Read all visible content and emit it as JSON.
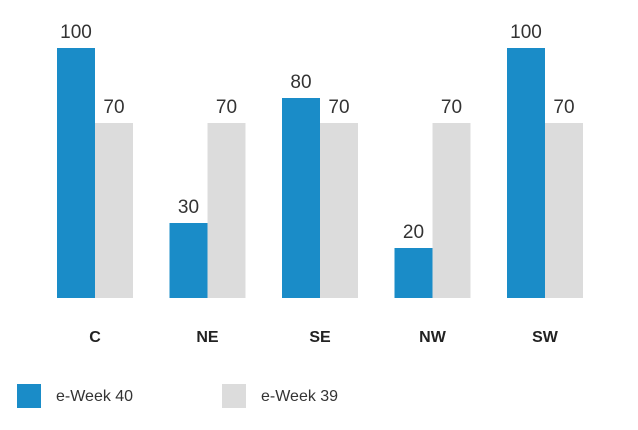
{
  "chart_data": {
    "type": "bar",
    "categories": [
      "C",
      "NE",
      "SE",
      "NW",
      "SW"
    ],
    "series": [
      {
        "name": "e-Week 40",
        "values": [
          100,
          30,
          80,
          20,
          100
        ],
        "color": "#1a8cc8"
      },
      {
        "name": "e-Week 39",
        "values": [
          70,
          70,
          70,
          70,
          70
        ],
        "color": "#dcdcdc"
      }
    ],
    "ylim": [
      0,
      100
    ],
    "grid": false,
    "legend_position": "bottom-left",
    "title": "",
    "xlabel": "",
    "ylabel": ""
  }
}
